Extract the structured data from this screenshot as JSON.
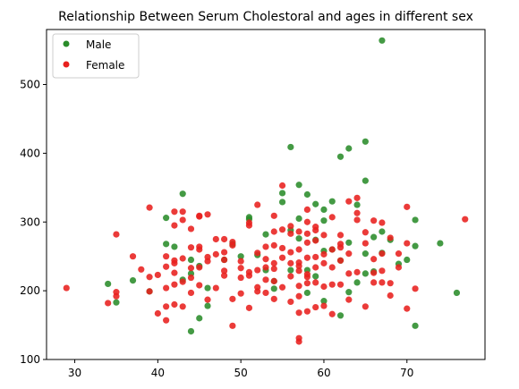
{
  "chart_data": {
    "type": "scatter",
    "title": "Relationship Between Serum Cholestoral and ages in different sex",
    "xlabel": "",
    "ylabel": "",
    "xlim": [
      26.6,
      79.4
    ],
    "ylim": [
      100,
      580
    ],
    "xticks": [
      30,
      40,
      50,
      60,
      70
    ],
    "yticks": [
      100,
      200,
      300,
      400,
      500
    ],
    "grid": false,
    "legend_position": "top-left",
    "series": [
      {
        "name": "Male",
        "color": "#2a8c2a",
        "points": [
          [
            34,
            210
          ],
          [
            35,
            183
          ],
          [
            37,
            215
          ],
          [
            39,
            199
          ],
          [
            41,
            268
          ],
          [
            41,
            306
          ],
          [
            42,
            264
          ],
          [
            43,
            341
          ],
          [
            43,
            216
          ],
          [
            44,
            141
          ],
          [
            44,
            225
          ],
          [
            44,
            245
          ],
          [
            45,
            160
          ],
          [
            45,
            236
          ],
          [
            46,
            178
          ],
          [
            46,
            204
          ],
          [
            48,
            245
          ],
          [
            49,
            268
          ],
          [
            50,
            250
          ],
          [
            51,
            304
          ],
          [
            51,
            307
          ],
          [
            52,
            252
          ],
          [
            53,
            230
          ],
          [
            53,
            282
          ],
          [
            54,
            214
          ],
          [
            54,
            203
          ],
          [
            55,
            329
          ],
          [
            55,
            342
          ],
          [
            56,
            409
          ],
          [
            56,
            288
          ],
          [
            56,
            230
          ],
          [
            57,
            354
          ],
          [
            57,
            305
          ],
          [
            57,
            276
          ],
          [
            58,
            340
          ],
          [
            58,
            230
          ],
          [
            58,
            197
          ],
          [
            59,
            326
          ],
          [
            59,
            274
          ],
          [
            59,
            221
          ],
          [
            60,
            318
          ],
          [
            60,
            302
          ],
          [
            60,
            258
          ],
          [
            60,
            185
          ],
          [
            61,
            330
          ],
          [
            61,
            260
          ],
          [
            62,
            395
          ],
          [
            62,
            164
          ],
          [
            62,
            244
          ],
          [
            63,
            407
          ],
          [
            63,
            270
          ],
          [
            63,
            198
          ],
          [
            64,
            325
          ],
          [
            64,
            212
          ],
          [
            65,
            417
          ],
          [
            65,
            360
          ],
          [
            65,
            254
          ],
          [
            65,
            225
          ],
          [
            66,
            278
          ],
          [
            66,
            228
          ],
          [
            67,
            564
          ],
          [
            67,
            286
          ],
          [
            67,
            255
          ],
          [
            68,
            274
          ],
          [
            69,
            239
          ],
          [
            70,
            245
          ],
          [
            71,
            303
          ],
          [
            71,
            265
          ],
          [
            71,
            149
          ],
          [
            74,
            269
          ],
          [
            76,
            197
          ]
        ]
      },
      {
        "name": "Female",
        "color": "#e8201e",
        "points": [
          [
            29,
            204
          ],
          [
            34,
            182
          ],
          [
            35,
            192
          ],
          [
            35,
            198
          ],
          [
            35,
            282
          ],
          [
            37,
            250
          ],
          [
            38,
            231
          ],
          [
            39,
            199
          ],
          [
            39,
            220
          ],
          [
            39,
            321
          ],
          [
            40,
            167
          ],
          [
            40,
            223
          ],
          [
            41,
            157
          ],
          [
            41,
            177
          ],
          [
            41,
            204
          ],
          [
            41,
            235
          ],
          [
            41,
            250
          ],
          [
            42,
            180
          ],
          [
            42,
            209
          ],
          [
            42,
            226
          ],
          [
            42,
            240
          ],
          [
            42,
            244
          ],
          [
            42,
            295
          ],
          [
            42,
            315
          ],
          [
            43,
            177
          ],
          [
            43,
            213
          ],
          [
            43,
            247
          ],
          [
            43,
            303
          ],
          [
            43,
            315
          ],
          [
            44,
            197
          ],
          [
            44,
            219
          ],
          [
            44,
            233
          ],
          [
            44,
            263
          ],
          [
            44,
            290
          ],
          [
            45,
            208
          ],
          [
            45,
            234
          ],
          [
            45,
            260
          ],
          [
            45,
            264
          ],
          [
            45,
            308
          ],
          [
            45,
            309
          ],
          [
            46,
            187
          ],
          [
            46,
            243
          ],
          [
            46,
            249
          ],
          [
            46,
            311
          ],
          [
            47,
            204
          ],
          [
            47,
            253
          ],
          [
            47,
            275
          ],
          [
            48,
            222
          ],
          [
            48,
            229
          ],
          [
            48,
            245
          ],
          [
            48,
            256
          ],
          [
            48,
            275
          ],
          [
            49,
            149
          ],
          [
            49,
            188
          ],
          [
            49,
            266
          ],
          [
            49,
            271
          ],
          [
            50,
            196
          ],
          [
            50,
            219
          ],
          [
            50,
            233
          ],
          [
            50,
            243
          ],
          [
            51,
            175
          ],
          [
            51,
            222
          ],
          [
            51,
            227
          ],
          [
            51,
            295
          ],
          [
            51,
            299
          ],
          [
            52,
            199
          ],
          [
            52,
            205
          ],
          [
            52,
            230
          ],
          [
            52,
            255
          ],
          [
            52,
            325
          ],
          [
            53,
            197
          ],
          [
            53,
            216
          ],
          [
            53,
            234
          ],
          [
            53,
            246
          ],
          [
            53,
            264
          ],
          [
            54,
            188
          ],
          [
            54,
            214
          ],
          [
            54,
            232
          ],
          [
            54,
            240
          ],
          [
            54,
            266
          ],
          [
            54,
            286
          ],
          [
            54,
            309
          ],
          [
            55,
            205
          ],
          [
            55,
            248
          ],
          [
            55,
            262
          ],
          [
            55,
            289
          ],
          [
            55,
            353
          ],
          [
            56,
            184
          ],
          [
            56,
            221
          ],
          [
            56,
            240
          ],
          [
            56,
            256
          ],
          [
            56,
            283
          ],
          [
            56,
            294
          ],
          [
            57,
            126
          ],
          [
            57,
            131
          ],
          [
            57,
            168
          ],
          [
            57,
            192
          ],
          [
            57,
            207
          ],
          [
            57,
            229
          ],
          [
            57,
            236
          ],
          [
            57,
            241
          ],
          [
            57,
            260
          ],
          [
            57,
            286
          ],
          [
            58,
            170
          ],
          [
            58,
            211
          ],
          [
            58,
            220
          ],
          [
            58,
            224
          ],
          [
            58,
            248
          ],
          [
            58,
            270
          ],
          [
            58,
            283
          ],
          [
            58,
            300
          ],
          [
            58,
            318
          ],
          [
            59,
            176
          ],
          [
            59,
            212
          ],
          [
            59,
            234
          ],
          [
            59,
            249
          ],
          [
            59,
            273
          ],
          [
            59,
            288
          ],
          [
            59,
            293
          ],
          [
            60,
            178
          ],
          [
            60,
            206
          ],
          [
            60,
            240
          ],
          [
            60,
            253
          ],
          [
            60,
            281
          ],
          [
            61,
            166
          ],
          [
            61,
            209
          ],
          [
            61,
            234
          ],
          [
            61,
            260
          ],
          [
            61,
            307
          ],
          [
            62,
            209
          ],
          [
            62,
            244
          ],
          [
            62,
            263
          ],
          [
            62,
            268
          ],
          [
            62,
            281
          ],
          [
            63,
            187
          ],
          [
            63,
            225
          ],
          [
            63,
            254
          ],
          [
            63,
            330
          ],
          [
            64,
            227
          ],
          [
            64,
            303
          ],
          [
            64,
            313
          ],
          [
            64,
            335
          ],
          [
            65,
            177
          ],
          [
            65,
            269
          ],
          [
            65,
            285
          ],
          [
            66,
            212
          ],
          [
            66,
            226
          ],
          [
            66,
            246
          ],
          [
            66,
            302
          ],
          [
            67,
            212
          ],
          [
            67,
            229
          ],
          [
            67,
            254
          ],
          [
            67,
            299
          ],
          [
            68,
            193
          ],
          [
            68,
            211
          ],
          [
            68,
            277
          ],
          [
            69,
            234
          ],
          [
            69,
            254
          ],
          [
            70,
            174
          ],
          [
            70,
            269
          ],
          [
            70,
            322
          ],
          [
            71,
            203
          ],
          [
            77,
            304
          ]
        ]
      }
    ]
  }
}
